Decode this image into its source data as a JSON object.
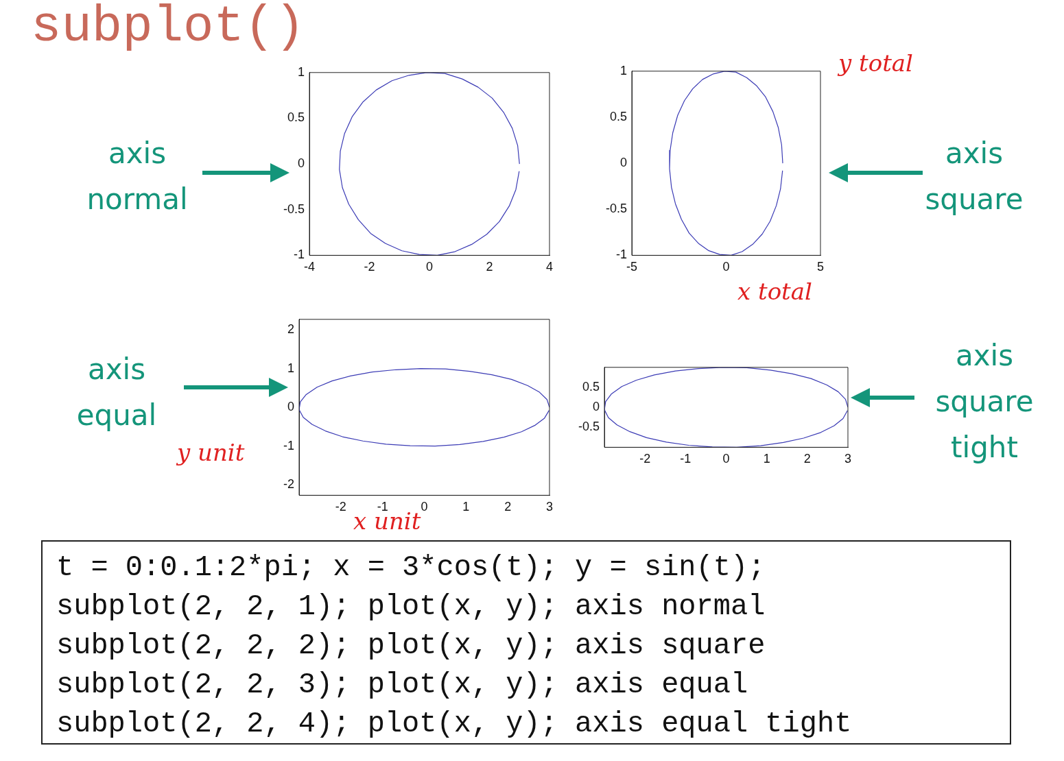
{
  "chart_data": [
    {
      "type": "line",
      "xlim": [
        -4,
        4
      ],
      "xticks": [
        -4,
        -2,
        0,
        2,
        4
      ],
      "ylim": [
        -1,
        1
      ],
      "yticks": [
        -1,
        -0.5,
        0,
        0.5,
        1
      ],
      "grid": false,
      "legend": false,
      "annotations": [
        "axis normal"
      ],
      "series": [
        {
          "color": "#3b3bb5",
          "x": [
            3,
            2.94,
            2.76,
            2.48,
            2.09,
            1.62,
            1.09,
            0.51,
            -0.09,
            -0.68,
            -1.25,
            -1.77,
            -2.21,
            -2.57,
            -2.83,
            -2.97,
            -3,
            -2.9,
            -2.69,
            -2.37,
            -1.96,
            -1.47,
            -0.92,
            -0.34,
            0.26,
            0.85,
            1.41,
            1.91,
            2.33,
            2.66,
            2.88,
            2.99
          ],
          "values": [
            0,
            0.2,
            0.39,
            0.56,
            0.72,
            0.84,
            0.93,
            0.99,
            1,
            0.97,
            0.91,
            0.81,
            0.68,
            0.52,
            0.33,
            0.14,
            -0.06,
            -0.26,
            -0.44,
            -0.61,
            -0.76,
            -0.87,
            -0.95,
            -0.99,
            -1,
            -0.96,
            -0.88,
            -0.77,
            -0.63,
            -0.46,
            -0.28,
            -0.08
          ]
        }
      ]
    },
    {
      "type": "line",
      "xlim": [
        -5,
        5
      ],
      "xticks": [
        -5,
        0,
        5
      ],
      "ylim": [
        -1,
        1
      ],
      "yticks": [
        -1,
        -0.5,
        0,
        0.5,
        1
      ],
      "grid": false,
      "legend": false,
      "annotations": [
        "axis square",
        "y total",
        "x total"
      ],
      "series": [
        {
          "color": "#3b3bb5",
          "x": [
            3,
            2.94,
            2.76,
            2.48,
            2.09,
            1.62,
            1.09,
            0.51,
            -0.09,
            -0.68,
            -1.25,
            -1.77,
            -2.21,
            -2.57,
            -2.83,
            -2.97,
            -3,
            -2.9,
            -2.69,
            -2.37,
            -1.96,
            -1.47,
            -0.92,
            -0.34,
            0.26,
            0.85,
            1.41,
            1.91,
            2.33,
            2.66,
            2.88,
            2.99
          ],
          "values": [
            0,
            0.2,
            0.39,
            0.56,
            0.72,
            0.84,
            0.93,
            0.99,
            1,
            0.97,
            0.91,
            0.81,
            0.68,
            0.52,
            0.33,
            0.14,
            -0.06,
            -0.26,
            -0.44,
            -0.61,
            -0.76,
            -0.87,
            -0.95,
            -0.99,
            -1,
            -0.96,
            -0.88,
            -0.77,
            -0.63,
            -0.46,
            -0.28,
            -0.08
          ]
        }
      ]
    },
    {
      "type": "line",
      "xlim": [
        -3,
        3
      ],
      "xticks": [
        -2,
        -1,
        0,
        1,
        2,
        3
      ],
      "ylim": [
        -2.27,
        2.27
      ],
      "yticks": [
        -2,
        -1,
        0,
        1,
        2
      ],
      "grid": false,
      "legend": false,
      "annotations": [
        "axis equal",
        "y unit",
        "x unit"
      ],
      "series": [
        {
          "color": "#3b3bb5",
          "x": [
            3,
            2.94,
            2.76,
            2.48,
            2.09,
            1.62,
            1.09,
            0.51,
            -0.09,
            -0.68,
            -1.25,
            -1.77,
            -2.21,
            -2.57,
            -2.83,
            -2.97,
            -3,
            -2.9,
            -2.69,
            -2.37,
            -1.96,
            -1.47,
            -0.92,
            -0.34,
            0.26,
            0.85,
            1.41,
            1.91,
            2.33,
            2.66,
            2.88,
            2.99
          ],
          "values": [
            0,
            0.2,
            0.39,
            0.56,
            0.72,
            0.84,
            0.93,
            0.99,
            1,
            0.97,
            0.91,
            0.81,
            0.68,
            0.52,
            0.33,
            0.14,
            -0.06,
            -0.26,
            -0.44,
            -0.61,
            -0.76,
            -0.87,
            -0.95,
            -0.99,
            -1,
            -0.96,
            -0.88,
            -0.77,
            -0.63,
            -0.46,
            -0.28,
            -0.08
          ]
        }
      ]
    },
    {
      "type": "line",
      "xlim": [
        -3,
        3
      ],
      "xticks": [
        -2,
        -1,
        0,
        1,
        2,
        3
      ],
      "ylim": [
        -1,
        1
      ],
      "yticks": [
        -0.5,
        0,
        0.5
      ],
      "grid": false,
      "legend": false,
      "annotations": [
        "axis square tight"
      ],
      "series": [
        {
          "color": "#3b3bb5",
          "x": [
            3,
            2.94,
            2.76,
            2.48,
            2.09,
            1.62,
            1.09,
            0.51,
            -0.09,
            -0.68,
            -1.25,
            -1.77,
            -2.21,
            -2.57,
            -2.83,
            -2.97,
            -3,
            -2.9,
            -2.69,
            -2.37,
            -1.96,
            -1.47,
            -0.92,
            -0.34,
            0.26,
            0.85,
            1.41,
            1.91,
            2.33,
            2.66,
            2.88,
            2.99
          ],
          "values": [
            0,
            0.2,
            0.39,
            0.56,
            0.72,
            0.84,
            0.93,
            0.99,
            1,
            0.97,
            0.91,
            0.81,
            0.68,
            0.52,
            0.33,
            0.14,
            -0.06,
            -0.26,
            -0.44,
            -0.61,
            -0.76,
            -0.87,
            -0.95,
            -0.99,
            -1,
            -0.96,
            -0.88,
            -0.77,
            -0.63,
            -0.46,
            -0.28,
            -0.08
          ]
        }
      ]
    },
    {
      "type": "other",
      "title": "subplot()",
      "annotations": [
        "t = 0:0.1:2*pi; x = 3*cos(t); y = sin(t);",
        "subplot(2, 2, 1); plot(x, y); axis normal",
        "subplot(2, 2, 2); plot(x, y); axis square",
        "subplot(2, 2, 3); plot(x, y); axis equal",
        "subplot(2, 2, 4); plot(x, y); axis equal tight"
      ]
    }
  ]
}
